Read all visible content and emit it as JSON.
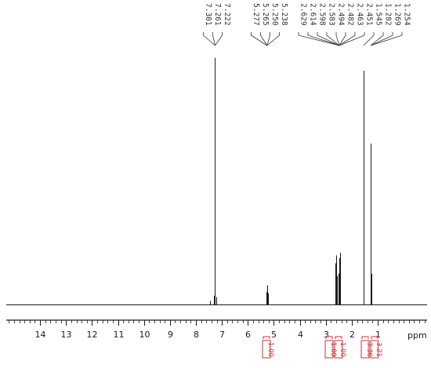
{
  "chart_data": {
    "type": "line",
    "xlabel": "ppm",
    "xlim": [
      15.3,
      -0.9
    ],
    "ylim": [
      0,
      1
    ],
    "x_ticks": [
      14,
      13,
      12,
      11,
      10,
      9,
      8,
      7,
      6,
      5,
      4,
      3,
      2,
      1
    ],
    "peaks": [
      {
        "ppm": 7.261,
        "height": 0.95
      },
      {
        "ppm": 7.301,
        "height": 0.035
      },
      {
        "ppm": 7.222,
        "height": 0.03
      },
      {
        "ppm": 5.277,
        "height": 0.05
      },
      {
        "ppm": 5.265,
        "height": 0.075
      },
      {
        "ppm": 5.25,
        "height": 0.072
      },
      {
        "ppm": 5.238,
        "height": 0.045
      },
      {
        "ppm": 2.629,
        "height": 0.16
      },
      {
        "ppm": 2.614,
        "height": 0.19
      },
      {
        "ppm": 2.598,
        "height": 0.17
      },
      {
        "ppm": 2.583,
        "height": 0.11
      },
      {
        "ppm": 2.494,
        "height": 0.12
      },
      {
        "ppm": 2.482,
        "height": 0.18
      },
      {
        "ppm": 2.463,
        "height": 0.2
      },
      {
        "ppm": 2.451,
        "height": 0.15
      },
      {
        "ppm": 1.545,
        "height": 0.9
      },
      {
        "ppm": 1.282,
        "height": 0.22
      },
      {
        "ppm": 1.269,
        "height": 0.62
      },
      {
        "ppm": 1.254,
        "height": 0.12
      }
    ],
    "peak_labels": [
      "7.301",
      "7.261",
      "7.222",
      "5.277",
      "5.265",
      "5.250",
      "5.238",
      "2.629",
      "2.614",
      "2.598",
      "2.583",
      "2.494",
      "2.482",
      "2.463",
      "2.451",
      "1.545",
      "1.282",
      "1.269",
      "1.254"
    ],
    "peak_label_groups": [
      {
        "labels": [
          "7.301",
          "7.261",
          "7.222"
        ],
        "ppm": 7.261
      },
      {
        "labels": [
          "5.277",
          "5.265",
          "5.250",
          "5.238"
        ],
        "ppm": 5.258
      },
      {
        "labels": [
          "2.629",
          "2.614",
          "2.598",
          "2.583",
          "2.494",
          "2.482",
          "2.463",
          "2.451"
        ],
        "ppm": 2.48
      },
      {
        "labels": [
          "1.545"
        ],
        "ppm": 1.545
      },
      {
        "labels": [
          "1.282",
          "1.269",
          "1.254"
        ],
        "ppm": 1.269
      }
    ],
    "integrals": [
      {
        "ppm": 5.26,
        "value": "1.00"
      },
      {
        "ppm": 2.62,
        "value": "1.00"
      },
      {
        "ppm": 2.47,
        "value": "1.00"
      },
      {
        "ppm": 1.54,
        "value": "3.36"
      },
      {
        "ppm": 1.27,
        "value": "3.21"
      }
    ],
    "colors": {
      "spectrum": "#1a1a1a",
      "axis": "#1a1a2e",
      "integral": "#d32f2f",
      "label": "#333333"
    }
  }
}
